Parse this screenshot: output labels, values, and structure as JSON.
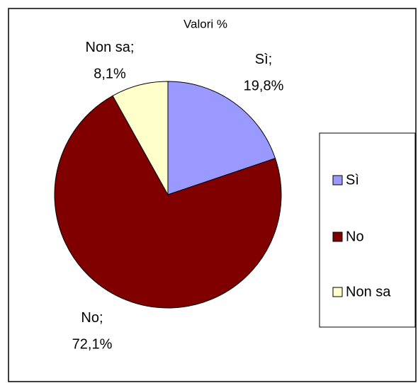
{
  "chart_data": {
    "type": "pie",
    "title": "Valori %",
    "categories": [
      "Sì",
      "No",
      "Non sa"
    ],
    "values": [
      19.8,
      72.1,
      8.1
    ],
    "value_labels": [
      "19,8%",
      "72,1%",
      "8,1%"
    ],
    "label_separator": ";",
    "colors": [
      "#9999ff",
      "#800000",
      "#ffffcc"
    ],
    "legend": "right"
  }
}
